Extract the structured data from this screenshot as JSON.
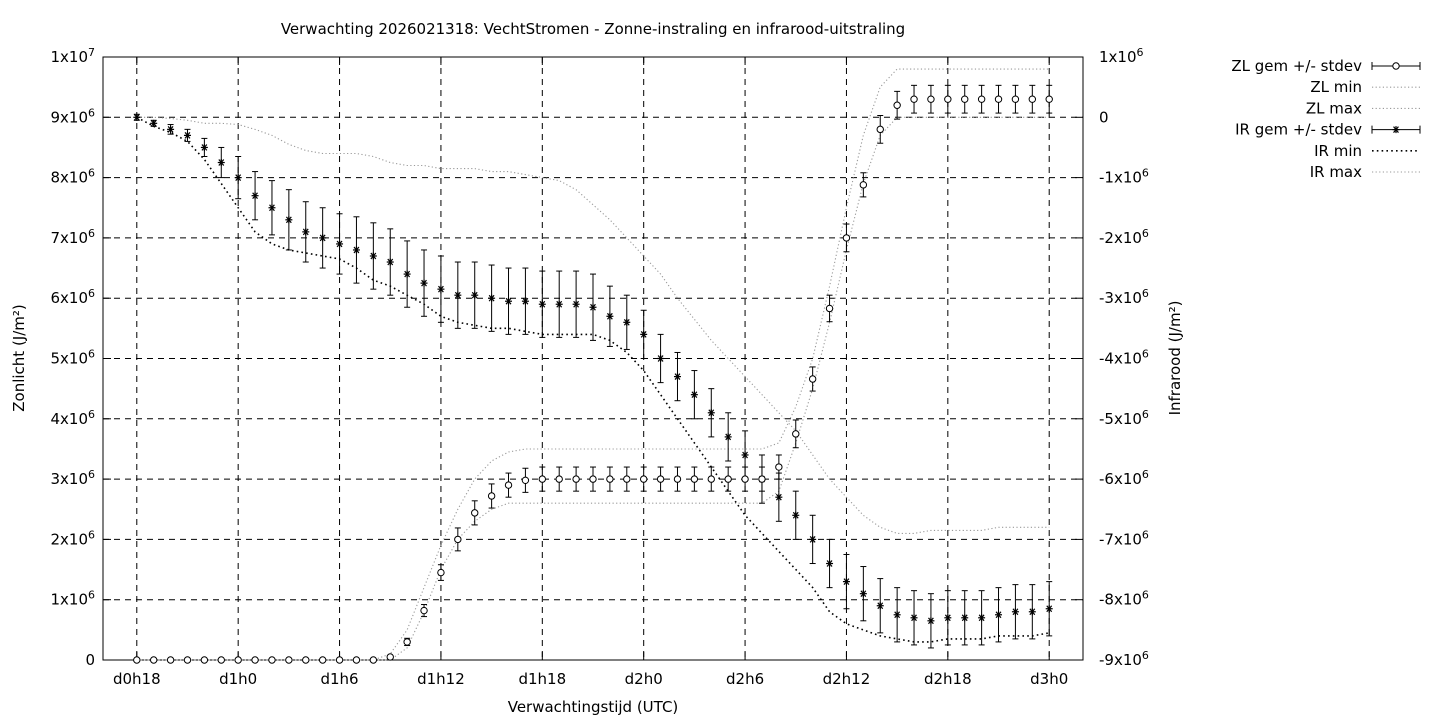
{
  "chart_data": {
    "type": "line",
    "title": "Verwachting 2026021318: VechtStromen - Zonne-instraling en infrarood-uitstraling",
    "xlabel": "Verwachtingstijd (UTC)",
    "ylabel": "Zonlicht (J/m²)",
    "y2label": "Infrarood (J/m²)",
    "x_unit": "hours since d0h0",
    "x_ticks": [
      {
        "x": 18,
        "label": "d0h18"
      },
      {
        "x": 24,
        "label": "d1h0"
      },
      {
        "x": 30,
        "label": "d1h6"
      },
      {
        "x": 36,
        "label": "d1h12"
      },
      {
        "x": 42,
        "label": "d1h18"
      },
      {
        "x": 48,
        "label": "d2h0"
      },
      {
        "x": 54,
        "label": "d2h6"
      },
      {
        "x": 60,
        "label": "d2h12"
      },
      {
        "x": 66,
        "label": "d2h18"
      },
      {
        "x": 72,
        "label": "d3h0"
      }
    ],
    "xlim": [
      16,
      74
    ],
    "ylim": [
      0,
      10000000
    ],
    "y2lim": [
      -9000000,
      1000000
    ],
    "y_ticks": [
      {
        "v": 0,
        "base": "0",
        "exp": ""
      },
      {
        "v": 1000000,
        "base": "1x10",
        "exp": "6"
      },
      {
        "v": 2000000,
        "base": "2x10",
        "exp": "6"
      },
      {
        "v": 3000000,
        "base": "3x10",
        "exp": "6"
      },
      {
        "v": 4000000,
        "base": "4x10",
        "exp": "6"
      },
      {
        "v": 5000000,
        "base": "5x10",
        "exp": "6"
      },
      {
        "v": 6000000,
        "base": "6x10",
        "exp": "6"
      },
      {
        "v": 7000000,
        "base": "7x10",
        "exp": "6"
      },
      {
        "v": 8000000,
        "base": "8x10",
        "exp": "6"
      },
      {
        "v": 9000000,
        "base": "9x10",
        "exp": "6"
      },
      {
        "v": 10000000,
        "base": "1x10",
        "exp": "7"
      }
    ],
    "y2_ticks": [
      {
        "v": -9000000,
        "base": "-9x10",
        "exp": "6"
      },
      {
        "v": -8000000,
        "base": "-8x10",
        "exp": "6"
      },
      {
        "v": -7000000,
        "base": "-7x10",
        "exp": "6"
      },
      {
        "v": -6000000,
        "base": "-6x10",
        "exp": "6"
      },
      {
        "v": -5000000,
        "base": "-5x10",
        "exp": "6"
      },
      {
        "v": -4000000,
        "base": "-4x10",
        "exp": "6"
      },
      {
        "v": -3000000,
        "base": "-3x10",
        "exp": "6"
      },
      {
        "v": -2000000,
        "base": "-2x10",
        "exp": "6"
      },
      {
        "v": -1000000,
        "base": "-1x10",
        "exp": "6"
      },
      {
        "v": 0,
        "base": "0",
        "exp": ""
      },
      {
        "v": 1000000,
        "base": "1x10",
        "exp": "6"
      }
    ],
    "grid": true,
    "legend_position": "top-right outside",
    "zl": {
      "x": [
        18,
        19,
        20,
        21,
        22,
        23,
        24,
        25,
        26,
        27,
        28,
        29,
        30,
        31,
        32,
        33,
        34,
        35,
        36,
        37,
        38,
        39,
        40,
        41,
        42,
        43,
        44,
        45,
        46,
        47,
        48,
        49,
        50,
        51,
        52,
        53,
        54,
        55,
        56,
        57,
        58,
        59,
        60,
        61,
        62,
        63,
        64,
        65,
        66,
        67,
        68,
        69,
        70,
        71,
        72
      ],
      "mean": [
        0,
        0,
        0,
        0,
        0,
        0,
        0,
        0,
        0,
        0,
        0,
        0,
        0,
        0,
        0,
        50000,
        300000,
        820000,
        1450000,
        2000000,
        2440000,
        2720000,
        2900000,
        2980000,
        3000000,
        3000000,
        3000000,
        3000000,
        3000000,
        3000000,
        3000000,
        3000000,
        3000000,
        3000000,
        3000000,
        3000000,
        3000000,
        3000000,
        3200000,
        3750000,
        4660000,
        5830000,
        7000000,
        7880000,
        8800000,
        9200000,
        9300000,
        9300000,
        9300000,
        9300000,
        9300000,
        9300000,
        9300000,
        9300000,
        9300000
      ],
      "stdev": [
        0,
        0,
        0,
        0,
        0,
        0,
        0,
        0,
        0,
        0,
        0,
        0,
        0,
        0,
        0,
        20000,
        60000,
        100000,
        130000,
        190000,
        200000,
        200000,
        200000,
        200000,
        200000,
        200000,
        200000,
        200000,
        200000,
        200000,
        200000,
        200000,
        200000,
        200000,
        200000,
        200000,
        200000,
        200000,
        200000,
        230000,
        200000,
        220000,
        230000,
        200000,
        230000,
        230000,
        230000,
        230000,
        230000,
        230000,
        230000,
        230000,
        230000,
        230000,
        230000
      ],
      "min": [
        0,
        0,
        0,
        0,
        0,
        0,
        0,
        0,
        0,
        0,
        0,
        0,
        0,
        0,
        0,
        0,
        200000,
        800000,
        1500000,
        2000000,
        2300000,
        2500000,
        2600000,
        2600000,
        2600000,
        2600000,
        2600000,
        2600000,
        2600000,
        2600000,
        2600000,
        2600000,
        2600000,
        2600000,
        2600000,
        2600000,
        2600000,
        2600000,
        2800000,
        3600000,
        4500000,
        5600000,
        6800000,
        7900000,
        8700000,
        9000000,
        9000000,
        9000000,
        9000000,
        9000000,
        9000000,
        9000000,
        9000000,
        9000000,
        9000000
      ],
      "max": [
        0,
        0,
        0,
        0,
        0,
        0,
        0,
        0,
        0,
        0,
        0,
        0,
        0,
        0,
        0,
        100000,
        500000,
        1200000,
        1900000,
        2500000,
        3000000,
        3300000,
        3450000,
        3500000,
        3500000,
        3500000,
        3500000,
        3500000,
        3500000,
        3500000,
        3500000,
        3500000,
        3500000,
        3500000,
        3500000,
        3500000,
        3500000,
        3500000,
        3600000,
        4200000,
        5000000,
        6200000,
        7500000,
        8700000,
        9500000,
        9800000,
        9800000,
        9800000,
        9800000,
        9800000,
        9800000,
        9800000,
        9800000,
        9800000,
        9800000
      ]
    },
    "ir": {
      "x": [
        18,
        19,
        20,
        21,
        22,
        23,
        24,
        25,
        26,
        27,
        28,
        29,
        30,
        31,
        32,
        33,
        34,
        35,
        36,
        37,
        38,
        39,
        40,
        41,
        42,
        43,
        44,
        45,
        46,
        47,
        48,
        49,
        50,
        51,
        52,
        53,
        54,
        55,
        56,
        57,
        58,
        59,
        60,
        61,
        62,
        63,
        64,
        65,
        66,
        67,
        68,
        69,
        70,
        71,
        72
      ],
      "mean": [
        0,
        -100000,
        -200000,
        -300000,
        -500000,
        -750000,
        -1000000,
        -1300000,
        -1500000,
        -1700000,
        -1900000,
        -2000000,
        -2100000,
        -2200000,
        -2300000,
        -2400000,
        -2600000,
        -2750000,
        -2850000,
        -2950000,
        -2950000,
        -3000000,
        -3050000,
        -3050000,
        -3100000,
        -3100000,
        -3100000,
        -3150000,
        -3300000,
        -3400000,
        -3600000,
        -4000000,
        -4300000,
        -4600000,
        -4900000,
        -5300000,
        -5600000,
        -6000000,
        -6300000,
        -6600000,
        -7000000,
        -7400000,
        -7700000,
        -7900000,
        -8100000,
        -8250000,
        -8300000,
        -8350000,
        -8300000,
        -8300000,
        -8300000,
        -8250000,
        -8200000,
        -8200000,
        -8150000
      ],
      "stdev": [
        50000,
        50000,
        80000,
        100000,
        150000,
        250000,
        350000,
        400000,
        450000,
        500000,
        500000,
        500000,
        500000,
        550000,
        550000,
        550000,
        550000,
        550000,
        550000,
        550000,
        550000,
        550000,
        550000,
        550000,
        550000,
        550000,
        550000,
        550000,
        500000,
        450000,
        400000,
        400000,
        400000,
        400000,
        400000,
        400000,
        400000,
        400000,
        400000,
        400000,
        400000,
        400000,
        450000,
        450000,
        450000,
        450000,
        450000,
        450000,
        450000,
        450000,
        450000,
        450000,
        450000,
        450000,
        450000
      ],
      "min": [
        0,
        -150000,
        -250000,
        -400000,
        -700000,
        -1100000,
        -1500000,
        -1900000,
        -2100000,
        -2200000,
        -2250000,
        -2300000,
        -2350000,
        -2500000,
        -2700000,
        -2800000,
        -2950000,
        -3100000,
        -3300000,
        -3400000,
        -3450000,
        -3500000,
        -3500000,
        -3550000,
        -3600000,
        -3600000,
        -3600000,
        -3600000,
        -3700000,
        -3900000,
        -4200000,
        -4600000,
        -5000000,
        -5400000,
        -5800000,
        -6200000,
        -6600000,
        -6900000,
        -7200000,
        -7500000,
        -7800000,
        -8200000,
        -8400000,
        -8500000,
        -8600000,
        -8650000,
        -8700000,
        -8700000,
        -8650000,
        -8650000,
        -8650000,
        -8600000,
        -8600000,
        -8600000,
        -8550000
      ],
      "max": [
        0,
        0,
        -20000,
        -50000,
        -100000,
        -100000,
        -120000,
        -200000,
        -300000,
        -450000,
        -550000,
        -600000,
        -600000,
        -600000,
        -650000,
        -750000,
        -800000,
        -800000,
        -850000,
        -850000,
        -850000,
        -900000,
        -900000,
        -950000,
        -1000000,
        -1050000,
        -1200000,
        -1450000,
        -1700000,
        -2000000,
        -2300000,
        -2600000,
        -3000000,
        -3350000,
        -3700000,
        -4000000,
        -4300000,
        -4600000,
        -4900000,
        -5200000,
        -5600000,
        -6000000,
        -6300000,
        -6600000,
        -6800000,
        -6900000,
        -6900000,
        -6850000,
        -6850000,
        -6850000,
        -6850000,
        -6800000,
        -6800000,
        -6800000,
        -6800000
      ]
    },
    "legend": [
      "ZL gem +/- stdev",
      "ZL min",
      "ZL max",
      "IR gem +/- stdev",
      "IR min",
      "IR max"
    ]
  }
}
